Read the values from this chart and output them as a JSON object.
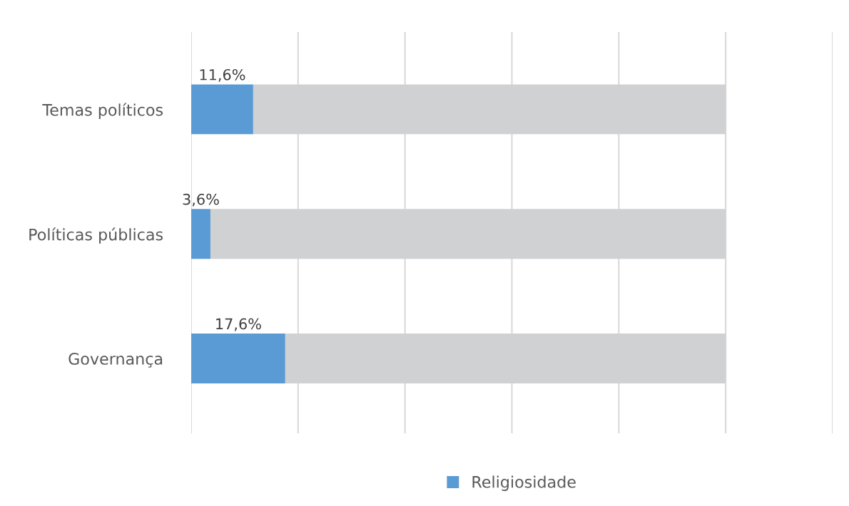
{
  "chart_data": {
    "type": "bar",
    "orientation": "horizontal",
    "stacked": true,
    "categories": [
      "Temas políticos",
      "Políticas públicas",
      "Governança"
    ],
    "series": [
      {
        "name": "Religiosidade",
        "color": "#5b9bd5",
        "values": [
          11.6,
          3.6,
          17.6
        ],
        "value_labels": [
          "11,6%",
          "3,6%",
          "17,6%"
        ]
      },
      {
        "color": "#d0d1d3",
        "values": [
          88.4,
          96.4,
          82.4
        ]
      }
    ],
    "xlim": [
      0,
      120
    ],
    "xticks": [
      {
        "value": 0,
        "label": null
      },
      {
        "value": 20,
        "label": null
      },
      {
        "value": 40,
        "label": null
      },
      {
        "value": 60,
        "label": null
      },
      {
        "value": 80,
        "label": null
      },
      {
        "value": 100,
        "label": null
      },
      {
        "value": 120,
        "label": null
      }
    ],
    "tick_labels": "y",
    "grid": "x",
    "legend": "bottom"
  }
}
